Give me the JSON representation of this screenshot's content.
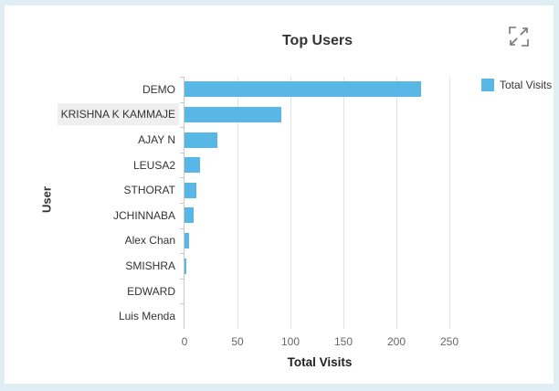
{
  "widget": {
    "title": "Top Users",
    "expand_icon": "expand-icon"
  },
  "legend": {
    "label": "Total Visits",
    "color": "#58b7e4"
  },
  "axes": {
    "x_label": "Total Visits",
    "y_label": "User",
    "x_ticks": [
      "0",
      "50",
      "100",
      "150",
      "200",
      "250"
    ]
  },
  "chart_data": {
    "type": "bar",
    "orientation": "horizontal",
    "title": "Top Users",
    "xlabel": "Total Visits",
    "ylabel": "User",
    "xlim": [
      0,
      250
    ],
    "grid": true,
    "legend_position": "right",
    "categories": [
      "DEMO",
      "KRISHNA K KAMMAJE",
      "AJAY N",
      "LEUSA2",
      "STHORAT",
      "JCHINNABA",
      "Alex Chan",
      "SMISHRA",
      "EDWARD",
      "Luis Menda"
    ],
    "series": [
      {
        "name": "Total Visits",
        "color": "#58b7e4",
        "values": [
          223,
          91,
          31,
          15,
          11,
          9,
          4,
          1,
          0,
          0
        ]
      }
    ]
  }
}
